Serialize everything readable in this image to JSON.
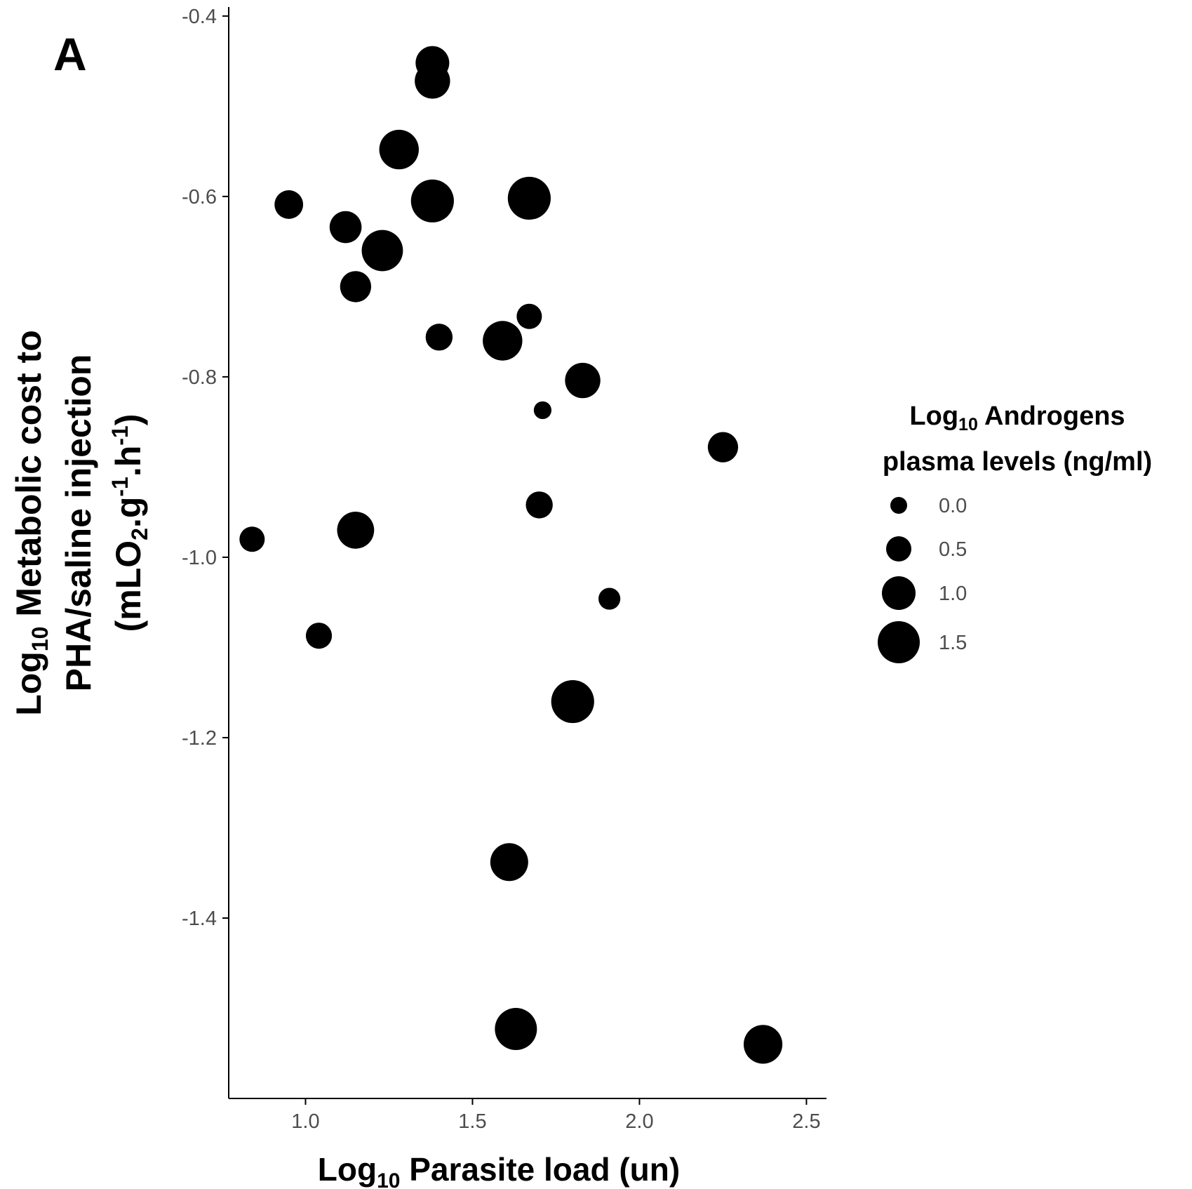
{
  "panel_label": "A",
  "chart_data": {
    "type": "scatter",
    "title": "",
    "xlabel": {
      "pre": "Log",
      "sub": "10",
      "post": " Parasite load (un)"
    },
    "ylabel": {
      "line1_pre": "Log",
      "line1_sub": "10",
      "line1_post": " Metabolic cost to",
      "line2": "PHA/saline injection",
      "line3_a": "(mLO",
      "line3_sub": "2",
      "line3_b": ".g",
      "line3_sup1": "-1",
      "line3_c": ".h",
      "line3_sup2": "-1",
      "line3_d": ")"
    },
    "xlim": [
      0.77,
      2.56
    ],
    "ylim": [
      -1.6,
      -0.39
    ],
    "x_ticks": [
      1.0,
      1.5,
      2.0,
      2.5
    ],
    "x_tick_labels": [
      "1.0",
      "1.5",
      "2.0",
      "2.5"
    ],
    "y_ticks": [
      -0.4,
      -0.6,
      -0.8,
      -1.0,
      -1.2,
      -1.4
    ],
    "y_tick_labels": [
      "-0.4",
      "-0.6",
      "-0.8",
      "-1.0",
      "-1.2",
      "-1.4"
    ],
    "grid": false,
    "legend_position": "right",
    "size_legend": {
      "title_line1_pre": "Log",
      "title_line1_sub": "10",
      "title_line1_post": " Androgens",
      "title_line2": "plasma levels (ng/ml)",
      "values": [
        0.0,
        0.5,
        1.0,
        1.5
      ],
      "labels": [
        "0.0",
        "0.5",
        "1.0",
        "1.5"
      ]
    },
    "points": [
      {
        "x": 1.38,
        "y": -0.452,
        "size": 1.0
      },
      {
        "x": 1.38,
        "y": -0.472,
        "size": 1.1
      },
      {
        "x": 1.28,
        "y": -0.548,
        "size": 1.35
      },
      {
        "x": 0.95,
        "y": -0.609,
        "size": 0.7
      },
      {
        "x": 1.38,
        "y": -0.605,
        "size": 1.55
      },
      {
        "x": 1.67,
        "y": -0.602,
        "size": 1.55
      },
      {
        "x": 1.12,
        "y": -0.634,
        "size": 0.9
      },
      {
        "x": 1.23,
        "y": -0.66,
        "size": 1.45
      },
      {
        "x": 1.15,
        "y": -0.7,
        "size": 0.85
      },
      {
        "x": 1.67,
        "y": -0.733,
        "size": 0.5
      },
      {
        "x": 1.4,
        "y": -0.756,
        "size": 0.6
      },
      {
        "x": 1.59,
        "y": -0.76,
        "size": 1.35
      },
      {
        "x": 1.83,
        "y": -0.804,
        "size": 1.1
      },
      {
        "x": 1.71,
        "y": -0.837,
        "size": 0.05
      },
      {
        "x": 2.25,
        "y": -0.878,
        "size": 0.8
      },
      {
        "x": 1.7,
        "y": -0.942,
        "size": 0.6
      },
      {
        "x": 1.15,
        "y": -0.97,
        "size": 1.2
      },
      {
        "x": 0.84,
        "y": -0.98,
        "size": 0.5
      },
      {
        "x": 1.91,
        "y": -1.046,
        "size": 0.3
      },
      {
        "x": 1.04,
        "y": -1.087,
        "size": 0.55
      },
      {
        "x": 1.8,
        "y": -1.16,
        "size": 1.55
      },
      {
        "x": 1.61,
        "y": -1.338,
        "size": 1.25
      },
      {
        "x": 1.63,
        "y": -1.523,
        "size": 1.5
      },
      {
        "x": 2.37,
        "y": -1.54,
        "size": 1.3
      }
    ]
  }
}
